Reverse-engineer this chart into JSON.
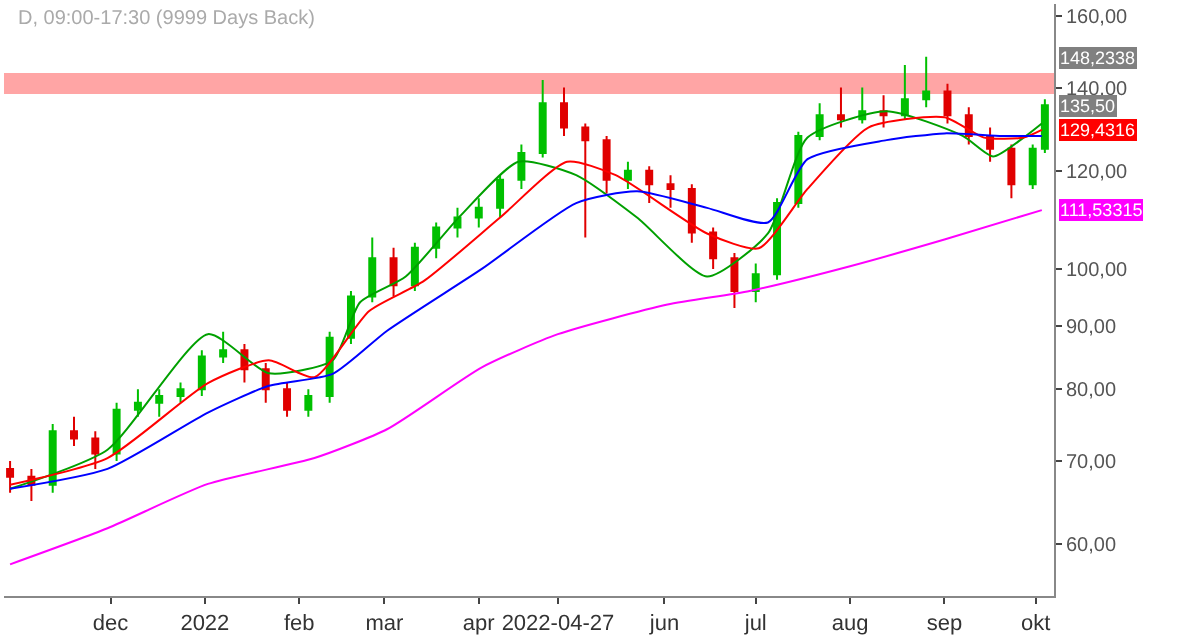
{
  "chart_data": {
    "type": "candlestick",
    "title": "D, 09:00-17:30 (9999 Days Back)",
    "x": [
      "2021-10-29",
      "2021-11-05",
      "2021-11-12",
      "2021-11-19",
      "2021-11-26",
      "2021-12-03",
      "2021-12-10",
      "2021-12-17",
      "2021-12-24",
      "2021-12-31",
      "2022-01-07",
      "2022-01-14",
      "2022-01-21",
      "2022-01-28",
      "2022-02-04",
      "2022-02-11",
      "2022-02-18",
      "2022-02-25",
      "2022-03-04",
      "2022-03-11",
      "2022-03-18",
      "2022-03-25",
      "2022-04-01",
      "2022-04-08",
      "2022-04-15",
      "2022-04-22",
      "2022-04-29",
      "2022-05-06",
      "2022-05-13",
      "2022-05-20",
      "2022-05-27",
      "2022-06-03",
      "2022-06-10",
      "2022-06-17",
      "2022-06-24",
      "2022-07-01",
      "2022-07-08",
      "2022-07-15",
      "2022-07-22",
      "2022-07-29",
      "2022-08-05",
      "2022-08-12",
      "2022-08-19",
      "2022-08-26",
      "2022-09-02",
      "2022-09-09",
      "2022-09-16",
      "2022-09-23",
      "2022-09-30",
      "2022-10-04"
    ],
    "ohlc": [
      [
        69,
        70,
        66,
        68
      ],
      [
        68,
        69,
        65,
        67
      ],
      [
        67,
        75,
        66,
        74
      ],
      [
        74,
        76,
        72,
        73
      ],
      [
        73,
        74,
        69,
        71
      ],
      [
        71,
        78,
        70,
        77
      ],
      [
        77,
        80,
        76,
        78
      ],
      [
        78,
        80,
        76,
        79
      ],
      [
        79,
        81,
        78,
        80
      ],
      [
        80,
        86,
        79,
        85
      ],
      [
        85,
        89,
        84,
        86
      ],
      [
        86,
        87,
        81,
        83
      ],
      [
        83,
        84,
        78,
        80
      ],
      [
        80,
        81,
        76,
        77
      ],
      [
        77,
        80,
        76,
        79
      ],
      [
        79,
        89,
        78,
        88
      ],
      [
        88,
        96,
        87,
        95
      ],
      [
        95,
        106,
        94,
        102
      ],
      [
        102,
        104,
        95,
        97
      ],
      [
        97,
        105,
        96,
        104
      ],
      [
        104,
        109,
        102,
        108
      ],
      [
        108,
        112,
        106,
        110
      ],
      [
        110,
        114,
        108,
        112
      ],
      [
        112,
        119,
        110,
        118
      ],
      [
        118,
        126,
        116,
        124
      ],
      [
        124,
        142,
        123,
        136
      ],
      [
        136,
        140,
        128,
        130
      ],
      [
        130,
        131,
        106,
        127
      ],
      [
        127,
        128,
        115,
        118
      ],
      [
        118,
        122,
        116,
        120
      ],
      [
        120,
        121,
        113,
        117
      ],
      [
        117,
        119,
        112,
        116
      ],
      [
        116,
        117,
        105,
        107
      ],
      [
        107,
        108,
        100,
        102
      ],
      [
        102,
        103,
        93,
        96
      ],
      [
        96,
        101,
        94,
        99
      ],
      [
        99,
        114,
        98,
        113
      ],
      [
        113,
        129,
        112,
        128
      ],
      [
        128,
        136,
        127,
        133
      ],
      [
        133,
        140,
        130,
        132
      ],
      [
        132,
        140,
        131,
        134
      ],
      [
        134,
        138,
        130,
        133
      ],
      [
        133,
        146,
        132,
        137
      ],
      [
        137,
        148.2338,
        135,
        139
      ],
      [
        139,
        141,
        131,
        133
      ],
      [
        133,
        135,
        126,
        128
      ],
      [
        128,
        130,
        122,
        125
      ],
      [
        125,
        126,
        114,
        117
      ],
      [
        117,
        126,
        116,
        125
      ],
      [
        125,
        137,
        124,
        135.5
      ]
    ],
    "series": [
      {
        "type": "line",
        "color": "#00a000",
        "x": [
          "2021-10-29",
          "2021-11-30",
          "2022-01-02",
          "2022-01-22",
          "2022-02-12",
          "2022-02-21",
          "2022-03-08",
          "2022-03-26",
          "2022-04-14",
          "2022-05-03",
          "2022-05-23",
          "2022-06-15",
          "2022-07-05",
          "2022-07-18",
          "2022-08-13",
          "2022-09-07",
          "2022-09-17",
          "2022-09-27",
          "2022-10-03"
        ],
        "values": [
          66.5,
          71.5,
          88.6,
          82.4,
          84.4,
          94,
          98.6,
          110.4,
          122,
          119,
          110,
          98.6,
          106.8,
          127.6,
          134,
          128,
          123.2,
          127.6,
          131
        ]
      },
      {
        "type": "line",
        "color": "#ff0000",
        "x": [
          "2021-10-29",
          "2021-11-30",
          "2022-01-02",
          "2022-01-22",
          "2022-02-06",
          "2022-02-24",
          "2022-03-14",
          "2022-04-08",
          "2022-04-30",
          "2022-05-16",
          "2022-06-15",
          "2022-07-02",
          "2022-07-18",
          "2022-08-07",
          "2022-09-01",
          "2022-09-14",
          "2022-09-27",
          "2022-10-03"
        ],
        "values": [
          67,
          70.4,
          80.9,
          84.4,
          81.8,
          92.5,
          97.8,
          110,
          122,
          119,
          106.8,
          103.9,
          116,
          130,
          132.5,
          127.6,
          127.6,
          129.4316
        ]
      },
      {
        "type": "line",
        "color": "#0000ff",
        "x": [
          "2021-10-29",
          "2021-11-30",
          "2022-01-02",
          "2022-01-22",
          "2022-02-12",
          "2022-03-02",
          "2022-04-02",
          "2022-05-03",
          "2022-05-23",
          "2022-06-15",
          "2022-07-05",
          "2022-07-18",
          "2022-08-13",
          "2022-09-01",
          "2022-09-20",
          "2022-10-03"
        ],
        "values": [
          66.5,
          69,
          76.6,
          80.5,
          82.3,
          89.2,
          100,
          113,
          115.5,
          112,
          109,
          122.6,
          127,
          128.6,
          128,
          128
        ]
      },
      {
        "type": "line",
        "color": "#ff00ff",
        "x": [
          "2021-10-29",
          "2021-11-30",
          "2022-01-02",
          "2022-02-06",
          "2022-03-02",
          "2022-04-02",
          "2022-04-27",
          "2022-06-02",
          "2022-06-29",
          "2022-08-01",
          "2022-09-01",
          "2022-10-03"
        ],
        "values": [
          57.8,
          61.8,
          67.1,
          70.4,
          74.3,
          83.3,
          88.6,
          93.6,
          96,
          100.5,
          105.6,
          111.53315
        ]
      }
    ],
    "colors": [
      "#e00000",
      "#e00000",
      "#00c000",
      "#e00000",
      "#e00000",
      "#00c000",
      "#00c000",
      "#00c000",
      "#00c000",
      "#00c000",
      "#00c000",
      "#e00000",
      "#e00000",
      "#e00000",
      "#00c000",
      "#00c000",
      "#00c000",
      "#00c000",
      "#e00000",
      "#00c000",
      "#00c000",
      "#00c000",
      "#00c000",
      "#00c000",
      "#00c000",
      "#00c000",
      "#e00000",
      "#e00000",
      "#e00000",
      "#00c000",
      "#e00000",
      "#e00000",
      "#e00000",
      "#e00000",
      "#e00000",
      "#00c000",
      "#00c000",
      "#00c000",
      "#00c000",
      "#e00000",
      "#00c000",
      "#e00000",
      "#00c000",
      "#00c000",
      "#e00000",
      "#e00000",
      "#e00000",
      "#e00000",
      "#00c000",
      "#00c000"
    ],
    "log": "y",
    "ylim": [
      54.5,
      163.5
    ],
    "yticks": [
      {
        "value": 60,
        "label": "60,00"
      },
      {
        "value": 70,
        "label": "70,00"
      },
      {
        "value": 80,
        "label": "80,00"
      },
      {
        "value": 90,
        "label": "90,00"
      },
      {
        "value": 100,
        "label": "100,00"
      },
      {
        "value": 120,
        "label": "120,00"
      },
      {
        "value": 140,
        "label": "140,00"
      },
      {
        "value": 160,
        "label": "160,00"
      }
    ],
    "xlim": [
      "2021-10-27",
      "2022-10-07"
    ],
    "xticks": [
      {
        "value": "2021-12-01",
        "label": "dec"
      },
      {
        "value": "2022-01-01",
        "label": "2022"
      },
      {
        "value": "2022-02-01",
        "label": "feb"
      },
      {
        "value": "2022-03-01",
        "label": "mar"
      },
      {
        "value": "2022-04-01",
        "label": "apr"
      },
      {
        "value": "2022-04-27",
        "label": "2022-04-27"
      },
      {
        "value": "2022-06-01",
        "label": "jun"
      },
      {
        "value": "2022-07-01",
        "label": "jul"
      },
      {
        "value": "2022-08-01",
        "label": "aug"
      },
      {
        "value": "2022-09-01",
        "label": "sep"
      },
      {
        "value": "2022-10-01",
        "label": "okt"
      }
    ],
    "bands": [
      {
        "axis": "y",
        "from": 138.6,
        "to": 143.6,
        "color": "#ff0000"
      }
    ],
    "annotations": [
      "148,2338",
      {
        "text": "135,50",
        "x": "2022-10-04",
        "y": 135.5
      },
      {
        "text": "129,4316",
        "x": "2022-10-03",
        "y": 129.4316
      },
      {
        "text": "111,53315",
        "x": "2022-10-03",
        "y": 111.53315
      }
    ],
    "grid": false
  }
}
